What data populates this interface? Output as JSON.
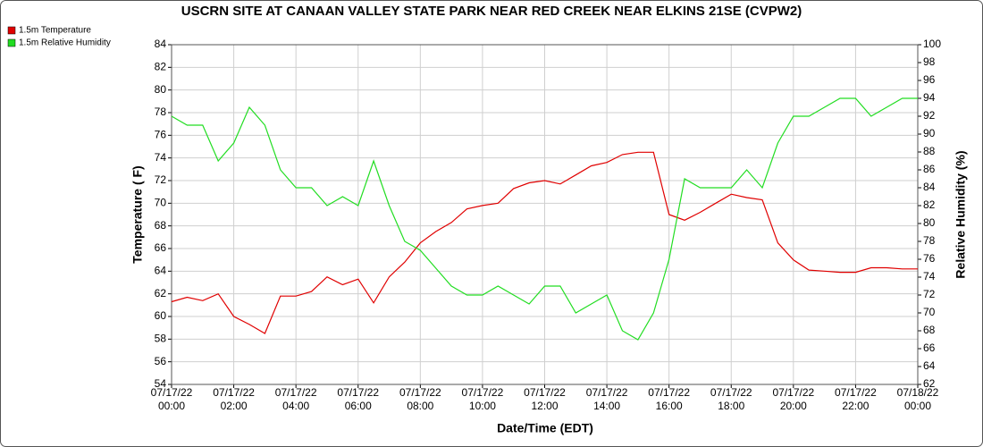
{
  "chart_data": {
    "type": "line",
    "title": "USCRN SITE AT CANAAN VALLEY STATE PARK NEAR RED CREEK NEAR ELKINS 21SE (CVPW2)",
    "x_label": "Date/Time (EDT)",
    "y_label": "Temperature ( F)",
    "y2_label": "Relative Humidity (%)",
    "x": [
      "07/17/22 00:00",
      "07/17/22 00:30",
      "07/17/22 01:00",
      "07/17/22 01:30",
      "07/17/22 02:00",
      "07/17/22 02:30",
      "07/17/22 03:00",
      "07/17/22 03:30",
      "07/17/22 04:00",
      "07/17/22 04:30",
      "07/17/22 05:00",
      "07/17/22 05:30",
      "07/17/22 06:00",
      "07/17/22 06:30",
      "07/17/22 07:00",
      "07/17/22 07:30",
      "07/17/22 08:00",
      "07/17/22 08:30",
      "07/17/22 09:00",
      "07/17/22 09:30",
      "07/17/22 10:00",
      "07/17/22 10:30",
      "07/17/22 11:00",
      "07/17/22 11:30",
      "07/17/22 12:00",
      "07/17/22 12:30",
      "07/17/22 13:00",
      "07/17/22 13:30",
      "07/17/22 14:00",
      "07/17/22 14:30",
      "07/17/22 15:00",
      "07/17/22 15:30",
      "07/17/22 16:00",
      "07/17/22 16:30",
      "07/17/22 17:00",
      "07/17/22 17:30",
      "07/17/22 18:00",
      "07/17/22 18:30",
      "07/17/22 19:00",
      "07/17/22 19:30",
      "07/17/22 20:00",
      "07/17/22 20:30",
      "07/17/22 21:00",
      "07/17/22 21:30",
      "07/17/22 22:00",
      "07/17/22 22:30",
      "07/17/22 23:00",
      "07/17/22 23:30",
      "07/18/22 00:00"
    ],
    "series": [
      {
        "name": "1.5m Temperature",
        "color": "#e00000",
        "axis": "y",
        "values": [
          61.3,
          61.7,
          61.4,
          62.0,
          60.0,
          59.3,
          58.5,
          61.8,
          61.8,
          62.2,
          63.5,
          62.8,
          63.3,
          61.2,
          63.5,
          64.8,
          66.5,
          67.5,
          68.3,
          69.5,
          69.8,
          70.0,
          71.3,
          71.8,
          72.0,
          71.7,
          72.5,
          73.3,
          73.6,
          74.3,
          74.5,
          74.5,
          69.0,
          68.5,
          69.2,
          70.0,
          70.8,
          70.5,
          70.3,
          66.5,
          65.0,
          64.1,
          64.0,
          63.9,
          63.9,
          64.3,
          64.3,
          64.2,
          64.2
        ]
      },
      {
        "name": "1.5m Relative Humidity",
        "color": "#22dd22",
        "axis": "y2",
        "values": [
          92,
          91,
          91,
          87,
          89,
          93,
          91,
          86,
          84,
          84,
          82,
          83,
          82,
          87,
          82,
          78,
          77,
          75,
          73,
          72,
          72,
          73,
          72,
          71,
          73,
          73,
          70,
          71,
          72,
          68,
          67,
          70,
          76,
          85,
          84,
          84,
          84,
          86,
          84,
          89,
          92,
          92,
          93,
          94,
          94,
          92,
          93,
          94,
          94
        ]
      }
    ],
    "xlim": [
      "07/17/22 00:00",
      "07/18/22 00:00"
    ],
    "xticks": [
      "07/17/22 00:00",
      "07/17/22 02:00",
      "07/17/22 04:00",
      "07/17/22 06:00",
      "07/17/22 08:00",
      "07/17/22 10:00",
      "07/17/22 12:00",
      "07/17/22 14:00",
      "07/17/22 16:00",
      "07/17/22 18:00",
      "07/17/22 20:00",
      "07/17/22 22:00",
      "07/18/22 00:00"
    ],
    "ylim": [
      54,
      84
    ],
    "yticks": [
      54,
      56,
      58,
      60,
      62,
      64,
      66,
      68,
      70,
      72,
      74,
      76,
      78,
      80,
      82,
      84
    ],
    "y2lim": [
      62,
      100
    ],
    "y2ticks": [
      62,
      64,
      66,
      68,
      70,
      72,
      74,
      76,
      78,
      80,
      82,
      84,
      86,
      88,
      90,
      92,
      94,
      96,
      98,
      100
    ],
    "grid": true,
    "legend_position": "top-left"
  }
}
